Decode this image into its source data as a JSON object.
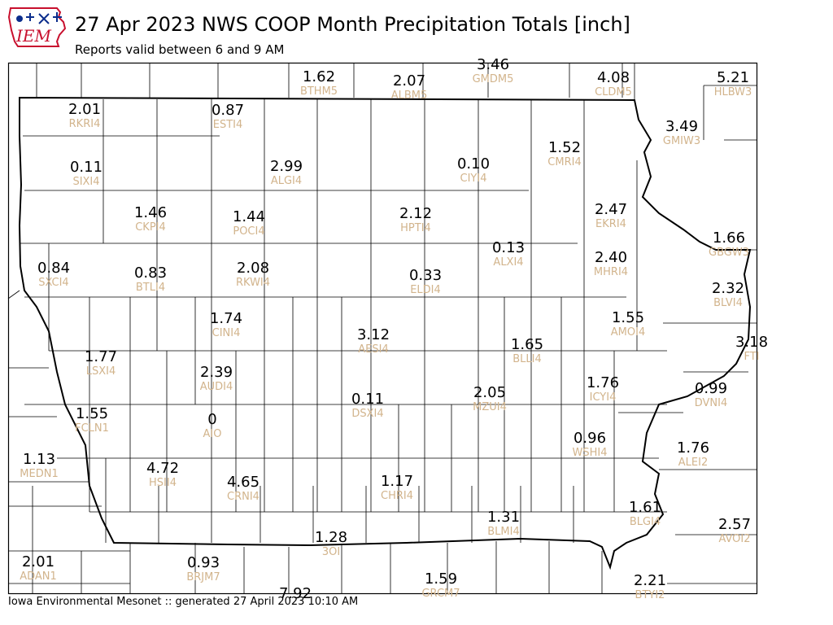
{
  "header": {
    "logo_text": "IEM",
    "title": "27 Apr 2023 NWS COOP Month Precipitation Totals [inch]",
    "subtitle": "Reports valid between 6 and 9 AM"
  },
  "footer": {
    "text": "Iowa Environmental Mesonet :: generated 27 April 2023 10:10 AM"
  },
  "colors": {
    "value_text": "#000000",
    "station_id_text": "#d2b48c",
    "county_lines": "#000000",
    "logo_state": "#c8102e",
    "logo_text": "#0b2d8c"
  },
  "stations": [
    {
      "id": "BTHM5",
      "value": "1.62"
    },
    {
      "id": "ALBM5",
      "value": "2.07"
    },
    {
      "id": "GMDM5",
      "value": "3.46"
    },
    {
      "id": "CLDM5",
      "value": "4.08"
    },
    {
      "id": "HLBW3",
      "value": "5.21"
    },
    {
      "id": "RKRI4",
      "value": "2.01"
    },
    {
      "id": "ESTI4",
      "value": "0.87"
    },
    {
      "id": "GMIW3",
      "value": "3.49"
    },
    {
      "id": "SIXI4",
      "value": "0.11"
    },
    {
      "id": "ALGI4",
      "value": "2.99"
    },
    {
      "id": "CIYI4",
      "value": "0.10"
    },
    {
      "id": "CMRI4",
      "value": "1.52"
    },
    {
      "id": "CKPI4",
      "value": "1.46"
    },
    {
      "id": "POCI4",
      "value": "1.44"
    },
    {
      "id": "HPTI4",
      "value": "2.12"
    },
    {
      "id": "EKRI4",
      "value": "2.47"
    },
    {
      "id": "GBGW3",
      "value": "1.66"
    },
    {
      "id": "SXCI4",
      "value": "0.84"
    },
    {
      "id": "BTLI4",
      "value": "0.83"
    },
    {
      "id": "RKWI4",
      "value": "2.08"
    },
    {
      "id": "ALXI4",
      "value": "0.13"
    },
    {
      "id": "ELDI4",
      "value": "0.33"
    },
    {
      "id": "MHRI4",
      "value": "2.40"
    },
    {
      "id": "BLVI4",
      "value": "2.32"
    },
    {
      "id": "CINI4",
      "value": "1.74"
    },
    {
      "id": "AMOI4",
      "value": "1.55"
    },
    {
      "id": "AESI4",
      "value": "3.12"
    },
    {
      "id": "FTI",
      "value": "3.18"
    },
    {
      "id": "BLLI4",
      "value": "1.65"
    },
    {
      "id": "LSXI4",
      "value": "1.77"
    },
    {
      "id": "AUDI4",
      "value": "2.39"
    },
    {
      "id": "ICYI4",
      "value": "1.76"
    },
    {
      "id": "DVNI4",
      "value": "0.99"
    },
    {
      "id": "DSXI4",
      "value": "0.11"
    },
    {
      "id": "MZUI4",
      "value": "2.05"
    },
    {
      "id": "FCLN1",
      "value": "1.55"
    },
    {
      "id": "AIO",
      "value": "0"
    },
    {
      "id": "WSHI4",
      "value": "0.96"
    },
    {
      "id": "ALEI2",
      "value": "1.76"
    },
    {
      "id": "MEDN1",
      "value": "1.13"
    },
    {
      "id": "HSII4",
      "value": "4.72"
    },
    {
      "id": "CRNI4",
      "value": "4.65"
    },
    {
      "id": "CHRI4",
      "value": "1.17"
    },
    {
      "id": "BLMI4",
      "value": "1.31"
    },
    {
      "id": "BLGI4",
      "value": "1.61"
    },
    {
      "id": "AVOI2",
      "value": "2.57"
    },
    {
      "id": "3OI",
      "value": "1.28"
    },
    {
      "id": "ADAN1",
      "value": "2.01"
    },
    {
      "id": "BRJM7",
      "value": "0.93"
    },
    {
      "id": "GRCM7",
      "value": "1.59"
    },
    {
      "id": "",
      "value": "7.92"
    },
    {
      "id": "BTYI2",
      "value": "2.21"
    }
  ]
}
